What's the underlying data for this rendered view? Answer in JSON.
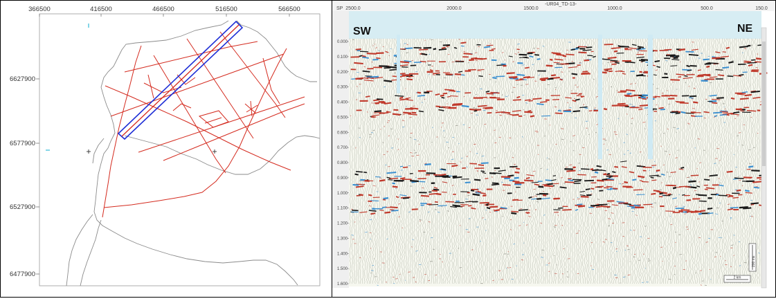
{
  "map": {
    "x_ticks": [
      "366500",
      "416500",
      "466500",
      "516500",
      "566500"
    ],
    "y_ticks": [
      "6627900",
      "6577900",
      "6527900",
      "6477900"
    ],
    "colors": {
      "survey_lines": "#d42a1e",
      "selected_box": "#1f2fd6",
      "coastline": "#8a8a8a",
      "axis": "#555555"
    }
  },
  "seismic": {
    "title": "-UR04_TD-13-",
    "sp_label": "SP",
    "sp_ticks": [
      "2500.0",
      "2000.0",
      "1500.0",
      "1000.0",
      "500.0",
      "150.0"
    ],
    "time_ticks": [
      "0.000",
      "0.100",
      "0.200",
      "0.300",
      "0.400",
      "0.500",
      "0.600",
      "0.700",
      "0.800",
      "0.900",
      "1.000",
      "1.100",
      "1.200",
      "1.300",
      "1.400",
      "1.500",
      "1.600"
    ],
    "left_label": "SW",
    "right_label": "NE",
    "scale_bar_label": "2 km",
    "vertical_scale_label": "200 ms",
    "colors": {
      "positive": "#c0392b",
      "strong": "#1a1a1a",
      "negative": "#3a8fd0",
      "background": "#f6f7ef",
      "sky": "#cfeaf4"
    }
  }
}
